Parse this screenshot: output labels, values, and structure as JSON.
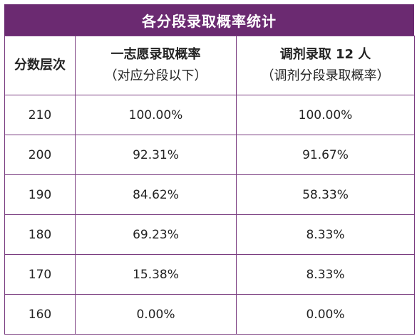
{
  "title": "各分段录取概率统计",
  "headers": {
    "col1": "分数层次",
    "col2_line1": "一志愿录取概率",
    "col2_line2": "（对应分段以下）",
    "col3_line1": "调剂录取 12 人",
    "col3_line2": "（调剂分段录取概率）"
  },
  "rows": [
    {
      "score": "210",
      "first_choice": "100.00%",
      "adjusted": "100.00%"
    },
    {
      "score": "200",
      "first_choice": "92.31%",
      "adjusted": "91.67%"
    },
    {
      "score": "190",
      "first_choice": "84.62%",
      "adjusted": "58.33%"
    },
    {
      "score": "180",
      "first_choice": "69.23%",
      "adjusted": "8.33%"
    },
    {
      "score": "170",
      "first_choice": "15.38%",
      "adjusted": "8.33%"
    },
    {
      "score": "160",
      "first_choice": "0.00%",
      "adjusted": "0.00%"
    }
  ],
  "colors": {
    "title_background": "#6b2a71",
    "title_text": "#ffffff",
    "border": "#7a3c80"
  }
}
